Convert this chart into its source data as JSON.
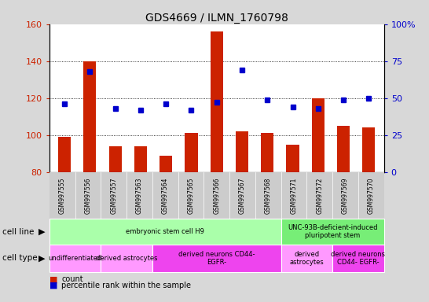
{
  "title": "GDS4669 / ILMN_1760798",
  "samples": [
    "GSM997555",
    "GSM997556",
    "GSM997557",
    "GSM997563",
    "GSM997564",
    "GSM997565",
    "GSM997566",
    "GSM997567",
    "GSM997568",
    "GSM997571",
    "GSM997572",
    "GSM997569",
    "GSM997570"
  ],
  "count_values": [
    99,
    140,
    94,
    94,
    89,
    101,
    156,
    102,
    101,
    95,
    120,
    105,
    104
  ],
  "pct_values": [
    46,
    68,
    43,
    42,
    46,
    42,
    47,
    69,
    49,
    44,
    43,
    49,
    50
  ],
  "ylim_left": [
    80,
    160
  ],
  "ylim_right": [
    0,
    100
  ],
  "yticks_left": [
    80,
    100,
    120,
    140,
    160
  ],
  "yticks_right": [
    0,
    25,
    50,
    75,
    100
  ],
  "bar_color": "#cc2200",
  "dot_color": "#0000cc",
  "background_color": "#d8d8d8",
  "plot_bg": "#ffffff",
  "cell_line_groups": [
    {
      "label": "embryonic stem cell H9",
      "start": 0,
      "end": 9,
      "color": "#aaffaa"
    },
    {
      "label": "UNC-93B-deficient-induced\npluripotent stem",
      "start": 9,
      "end": 13,
      "color": "#77ee77"
    }
  ],
  "cell_type_groups": [
    {
      "label": "undifferentiated",
      "start": 0,
      "end": 2,
      "color": "#ff99ff"
    },
    {
      "label": "derived astrocytes",
      "start": 2,
      "end": 4,
      "color": "#ff99ff"
    },
    {
      "label": "derived neurons CD44-\nEGFR-",
      "start": 4,
      "end": 9,
      "color": "#ee44ee"
    },
    {
      "label": "derived\nastrocytes",
      "start": 9,
      "end": 11,
      "color": "#ff99ff"
    },
    {
      "label": "derived neurons\nCD44- EGFR-",
      "start": 11,
      "end": 13,
      "color": "#ee44ee"
    }
  ]
}
